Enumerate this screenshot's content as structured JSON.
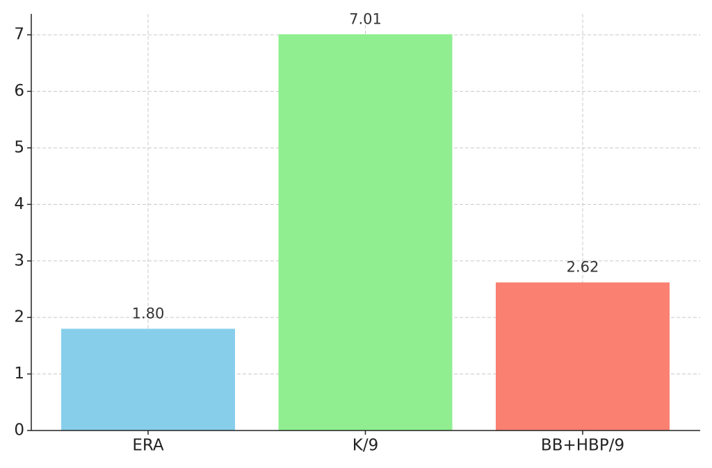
{
  "chart_data": {
    "type": "bar",
    "categories": [
      "ERA",
      "K/9",
      "BB+HBP/9"
    ],
    "values": [
      1.8,
      7.01,
      2.62
    ],
    "value_labels": [
      "1.80",
      "7.01",
      "2.62"
    ],
    "colors": [
      "#87ceeb",
      "#90ee90",
      "#fa8072"
    ],
    "ylim": [
      0,
      7.37
    ],
    "yticks": [
      0,
      1,
      2,
      3,
      4,
      5,
      6,
      7
    ],
    "grid": true
  }
}
